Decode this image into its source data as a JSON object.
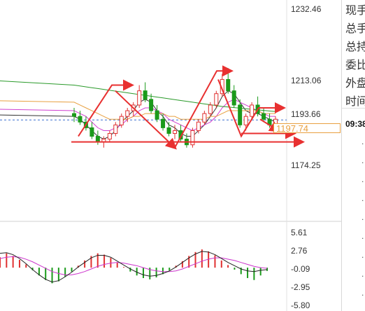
{
  "chart_data": [
    {
      "type": "candlestick",
      "title": "",
      "ylim": [
        1166,
        1238
      ],
      "price_ticks": [
        "1232.46",
        "1213.06",
        "1193.66",
        "1174.25"
      ],
      "current_price": "1197.74",
      "colors": {
        "up": "#e03030",
        "down": "#1a9a1a",
        "accent": "#e8a040",
        "annotation": "#e83030"
      },
      "candles": [
        {
          "o": 1200,
          "h": 1202,
          "l": 1197,
          "c": 1199
        },
        {
          "o": 1199,
          "h": 1201,
          "l": 1196,
          "c": 1197
        },
        {
          "o": 1197,
          "h": 1199,
          "l": 1194,
          "c": 1195
        },
        {
          "o": 1195,
          "h": 1197,
          "l": 1191,
          "c": 1192
        },
        {
          "o": 1192,
          "h": 1194,
          "l": 1189,
          "c": 1190
        },
        {
          "o": 1190,
          "h": 1192,
          "l": 1188,
          "c": 1191
        },
        {
          "o": 1191,
          "h": 1194,
          "l": 1190,
          "c": 1193
        },
        {
          "o": 1193,
          "h": 1197,
          "l": 1192,
          "c": 1196
        },
        {
          "o": 1196,
          "h": 1200,
          "l": 1195,
          "c": 1199
        },
        {
          "o": 1199,
          "h": 1202,
          "l": 1197,
          "c": 1201
        },
        {
          "o": 1201,
          "h": 1204,
          "l": 1199,
          "c": 1203
        },
        {
          "o": 1203,
          "h": 1210,
          "l": 1202,
          "c": 1208
        },
        {
          "o": 1208,
          "h": 1211,
          "l": 1204,
          "c": 1205
        },
        {
          "o": 1205,
          "h": 1207,
          "l": 1200,
          "c": 1201
        },
        {
          "o": 1201,
          "h": 1203,
          "l": 1197,
          "c": 1198
        },
        {
          "o": 1198,
          "h": 1200,
          "l": 1194,
          "c": 1195
        },
        {
          "o": 1195,
          "h": 1197,
          "l": 1192,
          "c": 1193
        },
        {
          "o": 1193,
          "h": 1196,
          "l": 1191,
          "c": 1194
        },
        {
          "o": 1194,
          "h": 1196,
          "l": 1190,
          "c": 1191
        },
        {
          "o": 1191,
          "h": 1193,
          "l": 1188,
          "c": 1189
        },
        {
          "o": 1189,
          "h": 1195,
          "l": 1188,
          "c": 1194
        },
        {
          "o": 1194,
          "h": 1198,
          "l": 1193,
          "c": 1197
        },
        {
          "o": 1197,
          "h": 1201,
          "l": 1196,
          "c": 1200
        },
        {
          "o": 1200,
          "h": 1204,
          "l": 1199,
          "c": 1203
        },
        {
          "o": 1203,
          "h": 1208,
          "l": 1202,
          "c": 1207
        },
        {
          "o": 1207,
          "h": 1214,
          "l": 1206,
          "c": 1212
        },
        {
          "o": 1212,
          "h": 1216,
          "l": 1207,
          "c": 1208
        },
        {
          "o": 1208,
          "h": 1210,
          "l": 1202,
          "c": 1203
        },
        {
          "o": 1203,
          "h": 1205,
          "l": 1195,
          "c": 1196
        },
        {
          "o": 1196,
          "h": 1200,
          "l": 1194,
          "c": 1199
        },
        {
          "o": 1199,
          "h": 1204,
          "l": 1198,
          "c": 1203
        },
        {
          "o": 1203,
          "h": 1206,
          "l": 1199,
          "c": 1200
        },
        {
          "o": 1200,
          "h": 1202,
          "l": 1197,
          "c": 1198
        },
        {
          "o": 1198,
          "h": 1200,
          "l": 1195,
          "c": 1196
        },
        {
          "o": 1196,
          "h": 1199,
          "l": 1195,
          "c": 1198
        }
      ],
      "ma_lines": [
        {
          "color": "#333333",
          "values": [
            1199,
            1198,
            1196,
            1194,
            1192,
            1191,
            1192,
            1194,
            1197,
            1199,
            1201,
            1204,
            1205,
            1204,
            1201,
            1199,
            1196,
            1195,
            1193,
            1192,
            1192,
            1194,
            1196,
            1199,
            1202,
            1206,
            1208,
            1207,
            1204,
            1201,
            1200,
            1200,
            1199,
            1198,
            1197
          ]
        },
        {
          "color": "#d040d0",
          "values": [
            1201,
            1200,
            1199,
            1197,
            1195,
            1194,
            1194,
            1195,
            1196,
            1198,
            1199,
            1201,
            1202,
            1202,
            1201,
            1200,
            1198,
            1197,
            1196,
            1195,
            1194,
            1195,
            1196,
            1197,
            1199,
            1202,
            1204,
            1205,
            1204,
            1203,
            1202,
            1201,
            1200,
            1199,
            1199
          ]
        },
        {
          "color": "#e8a040",
          "values": [
            1204,
            1203,
            1202,
            1201,
            1200,
            1199,
            1198,
            1198,
            1198,
            1198,
            1199,
            1199,
            1200,
            1200,
            1200,
            1200,
            1199,
            1199,
            1198,
            1198,
            1198,
            1198,
            1198,
            1199,
            1199,
            1200,
            1201,
            1201,
            1201,
            1201,
            1201,
            1201,
            1200,
            1200,
            1200
          ]
        },
        {
          "color": "#2a9a2a",
          "values": [
            1210,
            1209.7,
            1209.4,
            1209.1,
            1208.8,
            1208.5,
            1208.2,
            1207.9,
            1207.6,
            1207.3,
            1207,
            1206.7,
            1206.4,
            1206.1,
            1205.8,
            1205.5,
            1205.2,
            1204.9,
            1204.6,
            1204.3,
            1204,
            1203.7,
            1203.4,
            1203.1,
            1202.8,
            1202.5,
            1202.3,
            1202.1,
            1201.9,
            1201.7,
            1201.5,
            1201.3,
            1201.1,
            1200.9,
            1200.7
          ]
        }
      ]
    },
    {
      "type": "macd",
      "title": "",
      "ylim": [
        -5.8,
        5.61
      ],
      "ticks": [
        "5.61",
        "2.76",
        "-0.09",
        "-2.95",
        "-5.80"
      ],
      "histogram": [
        1.6,
        2.2,
        1.8,
        1.2,
        0.5,
        -0.4,
        -1.2,
        -1.9,
        -2.4,
        -2.1,
        -1.4,
        -0.6,
        0.3,
        1.1,
        1.8,
        2.2,
        2.0,
        1.5,
        0.8,
        0.1,
        -0.6,
        -1.2,
        -1.6,
        -1.8,
        -1.5,
        -1.0,
        -0.4,
        0.3,
        1.0,
        1.8,
        2.4,
        2.8,
        2.5,
        1.9,
        1.1,
        0.4,
        -0.3,
        -1.0,
        -1.6,
        -1.9,
        -1.2,
        -0.5
      ],
      "diff": [
        2.2,
        2.3,
        2.0,
        1.4,
        0.6,
        -0.3,
        -1.1,
        -1.8,
        -2.2,
        -2.0,
        -1.4,
        -0.7,
        0.1,
        0.8,
        1.5,
        1.9,
        1.9,
        1.6,
        1.0,
        0.4,
        -0.2,
        -0.7,
        -1.1,
        -1.3,
        -1.2,
        -0.9,
        -0.5,
        0.1,
        0.8,
        1.5,
        2.1,
        2.5,
        2.4,
        2.0,
        1.4,
        0.8,
        0.3,
        -0.2,
        -0.5,
        -0.6,
        -0.4,
        -0.3
      ],
      "dea": [
        1.4,
        1.6,
        1.7,
        1.6,
        1.3,
        0.9,
        0.4,
        -0.1,
        -0.6,
        -0.9,
        -1.1,
        -1.1,
        -0.9,
        -0.6,
        -0.2,
        0.2,
        0.5,
        0.7,
        0.8,
        0.7,
        0.5,
        0.3,
        0.0,
        -0.3,
        -0.5,
        -0.6,
        -0.6,
        -0.5,
        -0.2,
        0.2,
        0.6,
        1.0,
        1.3,
        1.5,
        1.5,
        1.3,
        1.1,
        0.8,
        0.5,
        0.2,
        0.0,
        -0.1
      ],
      "colors": {
        "diff": "#222222",
        "dea": "#cc33cc",
        "hist_up": "#e03030",
        "hist_down": "#1a9a1a"
      }
    }
  ],
  "side_panel": {
    "labels": [
      "现手",
      "总手",
      "总持",
      "委比",
      "外盘"
    ],
    "time_label": "时间",
    "time_value": "09:38",
    "dot_rows": 9,
    "dot": "."
  }
}
